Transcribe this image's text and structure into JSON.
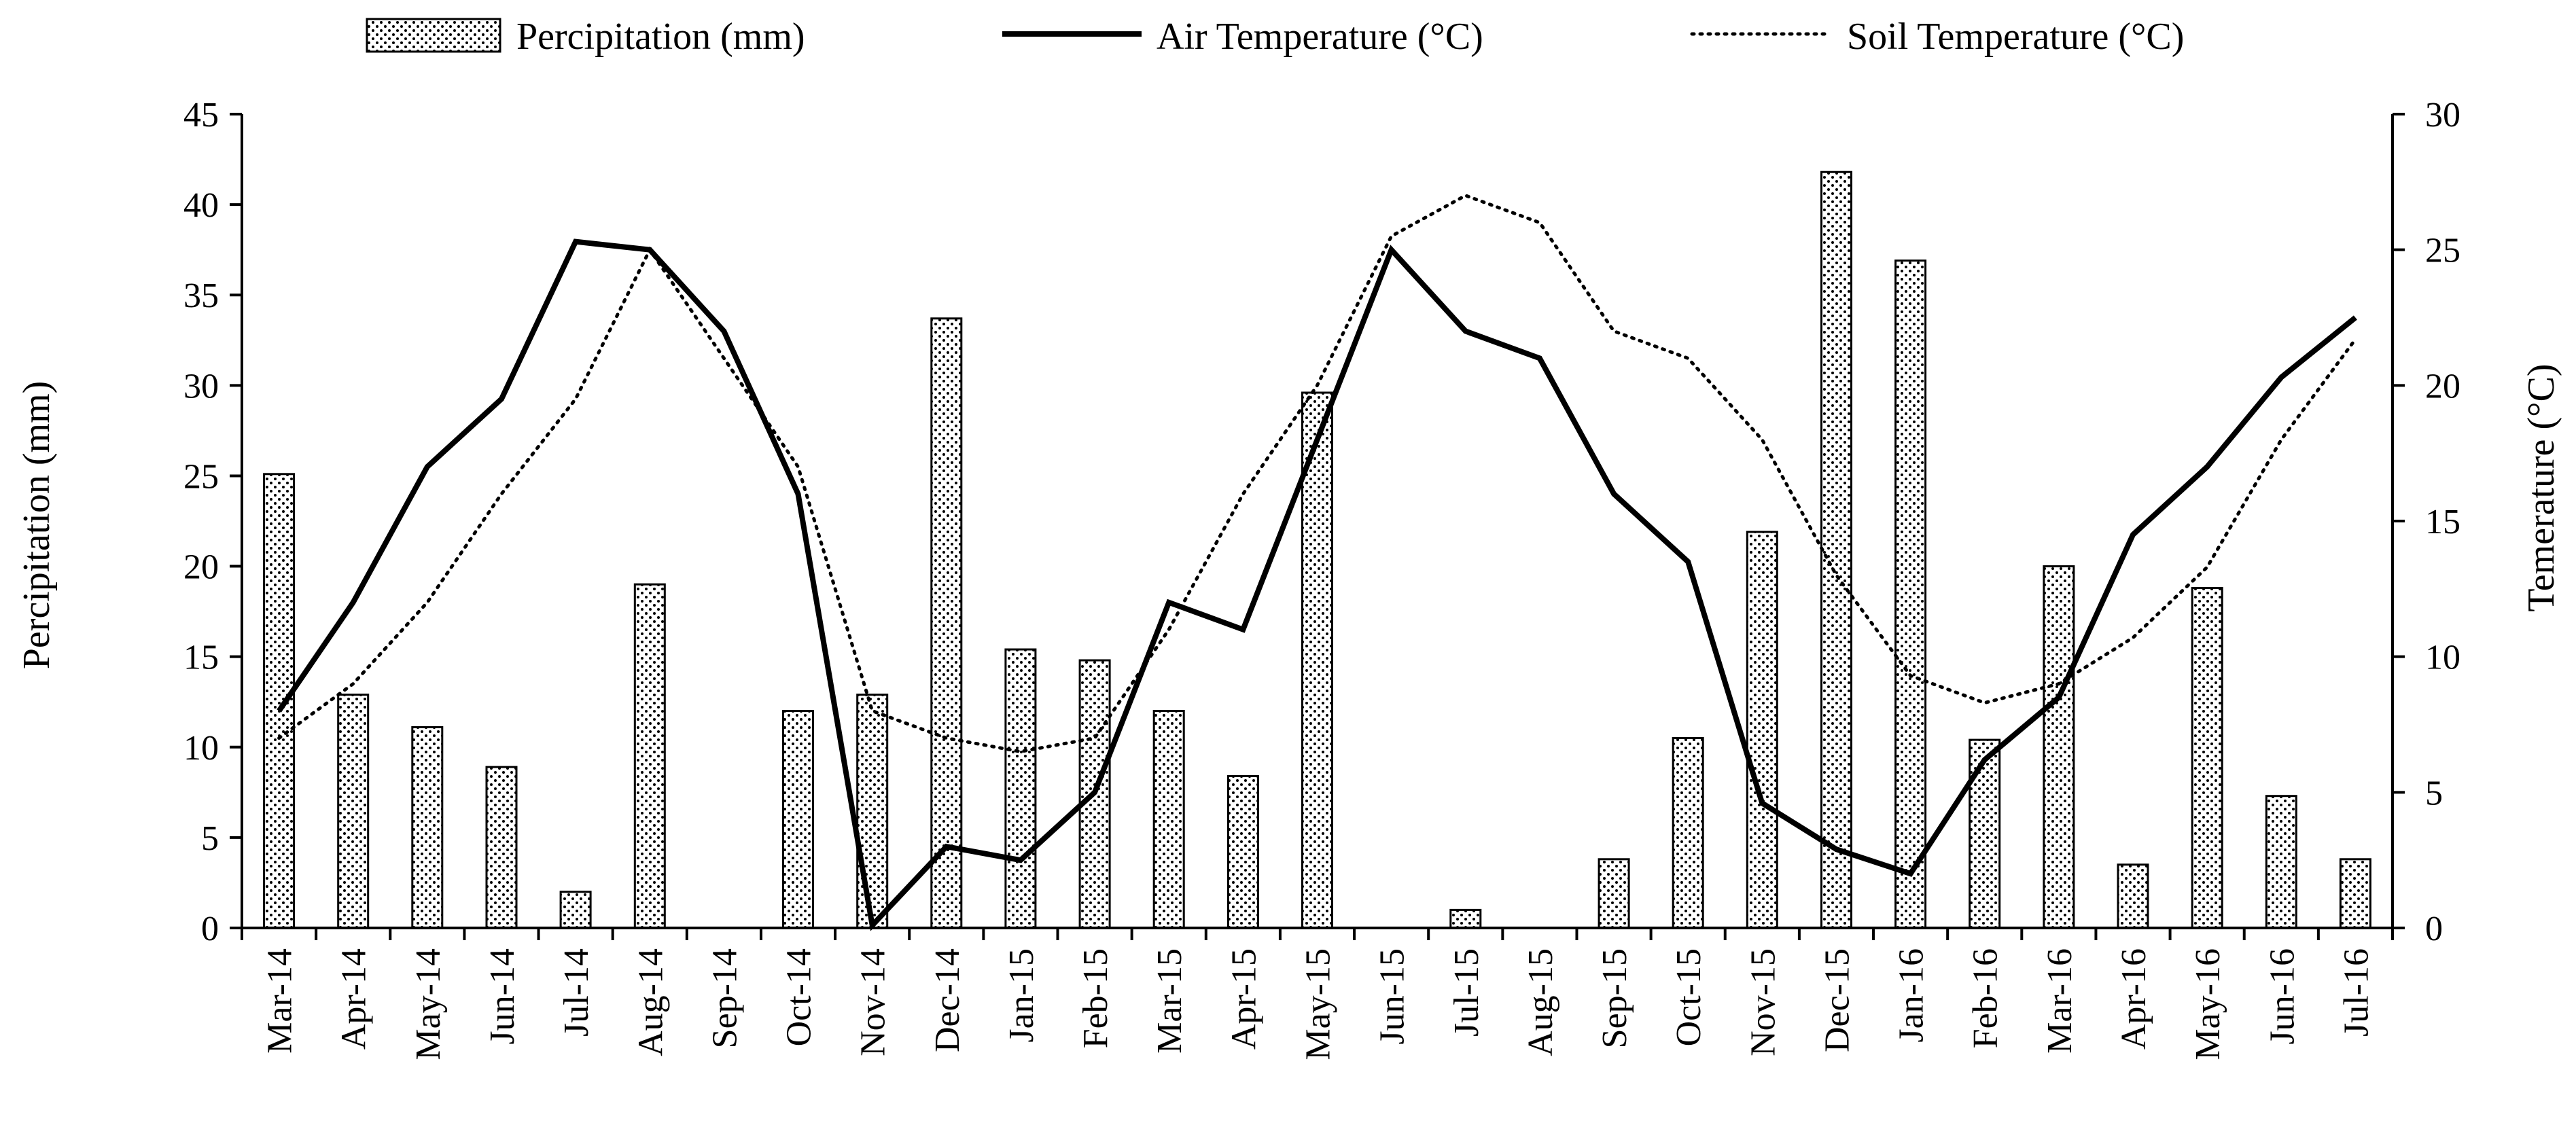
{
  "chart_data": {
    "type": "bar",
    "title": "",
    "categories": [
      "Mar-14",
      "Apr-14",
      "May-14",
      "Jun-14",
      "Jul-14",
      "Aug-14",
      "Sep-14",
      "Oct-14",
      "Nov-14",
      "Dec-14",
      "Jan-15",
      "Feb-15",
      "Mar-15",
      "Apr-15",
      "May-15",
      "Jun-15",
      "Jul-15",
      "Aug-15",
      "Sep-15",
      "Oct-15",
      "Nov-15",
      "Dec-15",
      "Jan-16",
      "Feb-16",
      "Mar-16",
      "Apr-16",
      "May-16",
      "Jun-16",
      "Jul-16"
    ],
    "xlabel": "",
    "ylabel": "Percipitation (mm)",
    "y2label": "Temerature (°C)",
    "ylim": [
      0,
      45
    ],
    "y2lim": [
      0,
      30
    ],
    "yticks": [
      "0",
      "5",
      "10",
      "15",
      "20",
      "25",
      "30",
      "35",
      "40",
      "45"
    ],
    "y2ticks": [
      "0",
      "5",
      "10",
      "15",
      "20",
      "25",
      "30"
    ],
    "legend_position": "top",
    "series": [
      {
        "name": "Percipitation (mm)",
        "type": "bar",
        "axis": "left",
        "values": [
          25.1,
          12.9,
          11.1,
          8.9,
          2.0,
          19.0,
          0,
          12.0,
          12.9,
          33.7,
          15.4,
          14.8,
          12.0,
          8.4,
          29.6,
          0,
          1.0,
          0,
          3.8,
          10.5,
          21.9,
          41.8,
          36.9,
          10.4,
          20.0,
          3.5,
          18.8,
          7.3,
          3.8
        ]
      },
      {
        "name": "Air Temperature (°C)",
        "type": "line",
        "axis": "right",
        "style": "solid",
        "values": [
          8.0,
          12.0,
          17.0,
          19.5,
          25.3,
          25.0,
          22.0,
          16.0,
          0.1,
          3.0,
          2.5,
          5.0,
          12.0,
          11.0,
          18.0,
          25.0,
          22.0,
          21.0,
          16.0,
          13.5,
          4.6,
          2.9,
          2.0,
          6.2,
          8.5,
          14.5,
          17.0,
          20.3,
          22.5
        ]
      },
      {
        "name": "Soil Temperature (°C)",
        "type": "line",
        "axis": "right",
        "style": "dotted",
        "values": [
          7.0,
          9.0,
          12.0,
          16.0,
          19.5,
          25.0,
          21.0,
          17.0,
          8.0,
          7.0,
          6.5,
          7.0,
          11.0,
          16.0,
          20.0,
          25.5,
          27.0,
          26.0,
          22.0,
          21.0,
          18.0,
          13.0,
          9.3,
          8.3,
          9.0,
          10.7,
          13.3,
          18.0,
          21.7
        ]
      }
    ]
  }
}
